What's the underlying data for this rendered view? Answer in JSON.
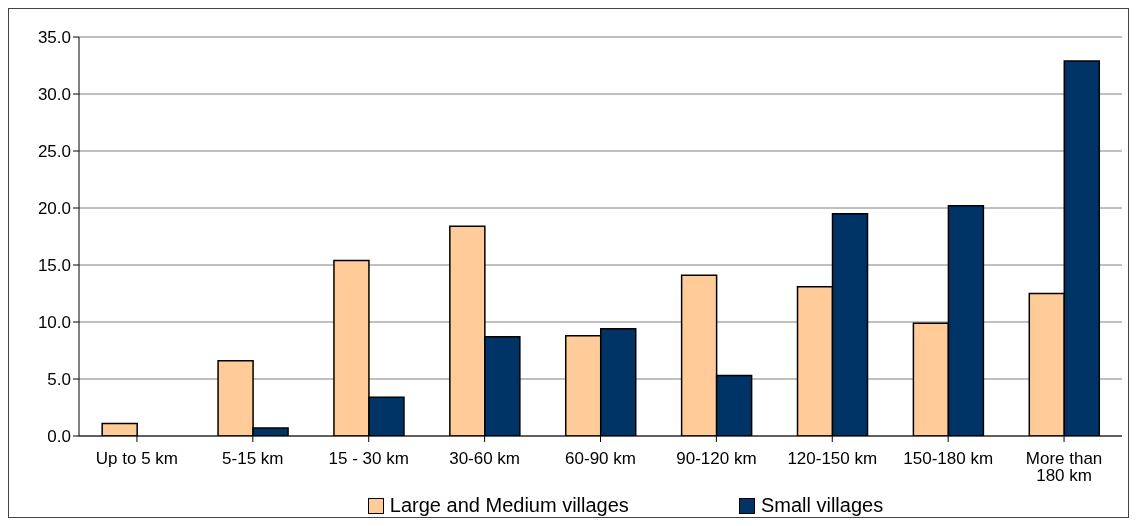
{
  "chart_data": {
    "type": "bar",
    "categories": [
      "Up to 5 km",
      "5-15 km",
      "15 - 30 km",
      "30-60 km",
      "60-90 km",
      "90-120 km",
      "120-150 km",
      "150-180 km",
      "More than 180 km"
    ],
    "series": [
      {
        "name": "Large and Medium villages",
        "color": "#ffcc99",
        "values": [
          1.1,
          6.6,
          15.4,
          18.4,
          8.8,
          14.1,
          13.1,
          9.9,
          12.5
        ]
      },
      {
        "name": "Small villages",
        "color": "#003366",
        "values": [
          0,
          0.7,
          3.4,
          8.7,
          9.4,
          5.3,
          19.5,
          20.2,
          32.9
        ]
      }
    ],
    "ylim": [
      0,
      35
    ],
    "yticks": [
      {
        "value": 0,
        "label": "0.0"
      },
      {
        "value": 5,
        "label": "5.0"
      },
      {
        "value": 10,
        "label": "10.0"
      },
      {
        "value": 15,
        "label": "15.0"
      },
      {
        "value": 20,
        "label": "20.0"
      },
      {
        "value": 25,
        "label": "25.0"
      },
      {
        "value": 30,
        "label": "30.0"
      },
      {
        "value": 35,
        "label": "35.0"
      }
    ],
    "grid": "y",
    "legend": "bottom"
  }
}
